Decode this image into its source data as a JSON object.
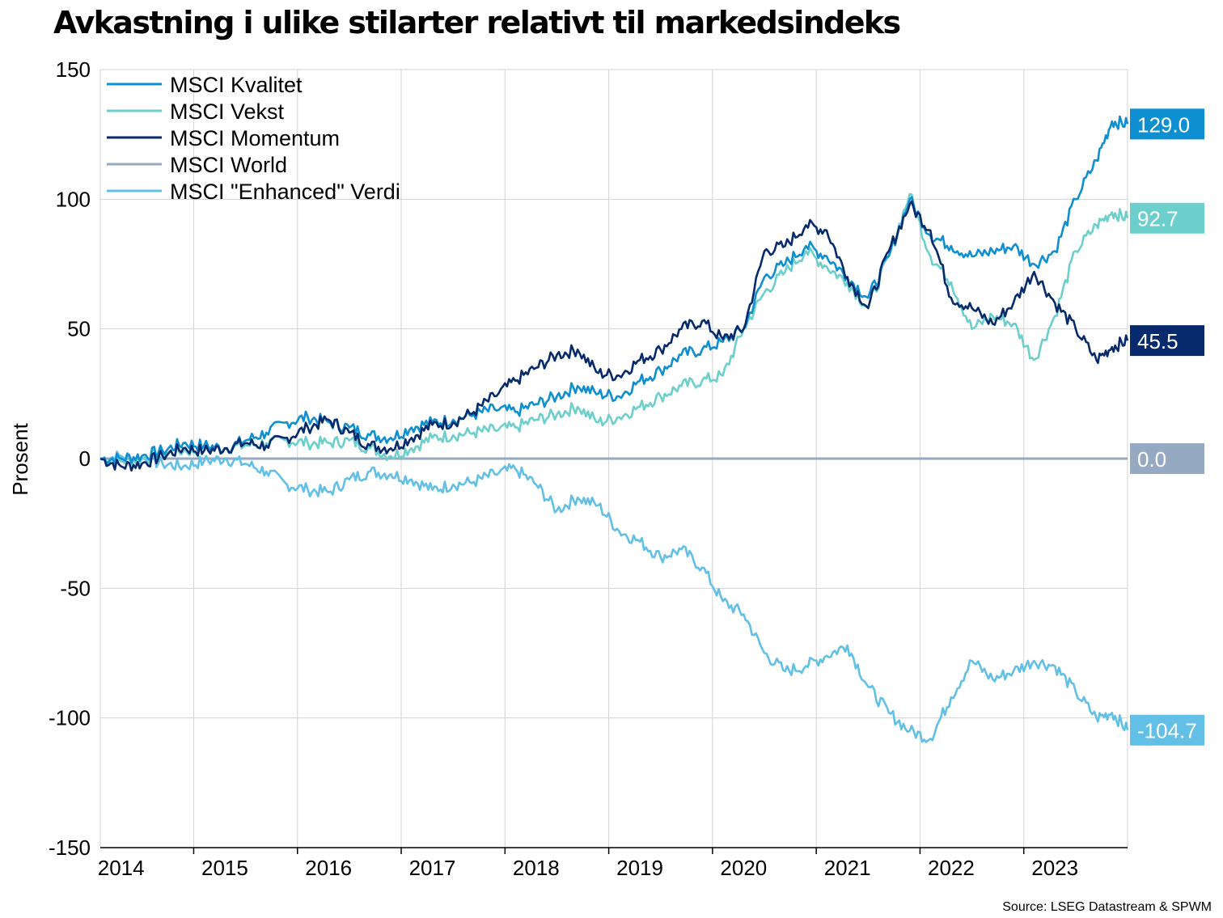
{
  "chart_data": {
    "type": "line",
    "title": "Avkastning i ulike stilarter relativt til markedsindeks",
    "ylabel": "Prosent",
    "xlabel": "",
    "source": "Source: LSEG Datastream & SPWM",
    "ylim": [
      -150,
      150
    ],
    "yticks": [
      150,
      100,
      50,
      0,
      -50,
      -100,
      -150
    ],
    "ytick_labels": [
      "150",
      "100",
      "50",
      "0",
      "-50",
      "-100",
      "-150"
    ],
    "xlim": [
      2013.8,
      2023.7
    ],
    "x_tick_labels": [
      {
        "label": "2014",
        "x": 2014.0
      },
      {
        "label": "2015",
        "x": 2015.0
      },
      {
        "label": "2016",
        "x": 2016.0
      },
      {
        "label": "2017",
        "x": 2017.0
      },
      {
        "label": "2018",
        "x": 2018.0
      },
      {
        "label": "2019",
        "x": 2019.0
      },
      {
        "label": "2020",
        "x": 2020.0
      },
      {
        "label": "2021",
        "x": 2021.0
      },
      {
        "label": "2022",
        "x": 2022.0
      },
      {
        "label": "2023",
        "x": 2023.0
      }
    ],
    "x_gridlines": [
      2014.7,
      2015.7,
      2016.7,
      2017.7,
      2018.7,
      2019.7,
      2020.7,
      2021.7,
      2022.7
    ],
    "grid": true,
    "legend_position": "top-left",
    "series": [
      {
        "name": "MSCI Kvalitet",
        "color": "#0d8fd1",
        "end_label": "129.0",
        "x": [
          2013.8,
          2014.0,
          2014.2,
          2014.4,
          2014.6,
          2014.8,
          2015.0,
          2015.2,
          2015.4,
          2015.6,
          2015.8,
          2016.0,
          2016.2,
          2016.4,
          2016.6,
          2016.8,
          2017.0,
          2017.2,
          2017.4,
          2017.6,
          2017.8,
          2018.0,
          2018.2,
          2018.4,
          2018.6,
          2018.8,
          2019.0,
          2019.2,
          2019.4,
          2019.6,
          2019.8,
          2020.0,
          2020.2,
          2020.4,
          2020.6,
          2020.8,
          2021.0,
          2021.2,
          2021.4,
          2021.6,
          2021.8,
          2022.0,
          2022.2,
          2022.4,
          2022.6,
          2022.8,
          2023.0,
          2023.2,
          2023.4,
          2023.55,
          2023.7
        ],
        "y": [
          0,
          0,
          1,
          3,
          6,
          5,
          4,
          7,
          10,
          14,
          16,
          14,
          12,
          9,
          8,
          12,
          14,
          15,
          17,
          19,
          18,
          21,
          24,
          28,
          25,
          24,
          30,
          34,
          40,
          42,
          45,
          50,
          70,
          75,
          82,
          78,
          70,
          62,
          78,
          100,
          86,
          82,
          78,
          80,
          82,
          75,
          80,
          100,
          115,
          130,
          129
        ]
      },
      {
        "name": "MSCI Vekst",
        "color": "#6ccfcc",
        "end_label": "92.7",
        "x": [
          2013.8,
          2014.0,
          2014.2,
          2014.4,
          2014.6,
          2014.8,
          2015.0,
          2015.2,
          2015.4,
          2015.6,
          2015.8,
          2016.0,
          2016.2,
          2016.4,
          2016.6,
          2016.8,
          2017.0,
          2017.2,
          2017.4,
          2017.6,
          2017.8,
          2018.0,
          2018.2,
          2018.4,
          2018.6,
          2018.8,
          2019.0,
          2019.2,
          2019.4,
          2019.6,
          2019.8,
          2020.0,
          2020.2,
          2020.4,
          2020.6,
          2020.8,
          2021.0,
          2021.2,
          2021.4,
          2021.6,
          2021.8,
          2022.0,
          2022.2,
          2022.4,
          2022.6,
          2022.8,
          2023.0,
          2023.2,
          2023.4,
          2023.55,
          2023.7
        ],
        "y": [
          0,
          -1,
          0,
          2,
          3,
          3,
          4,
          5,
          6,
          7,
          6,
          6,
          7,
          4,
          1,
          4,
          8,
          9,
          10,
          11,
          12,
          15,
          17,
          20,
          14,
          16,
          20,
          24,
          28,
          30,
          32,
          50,
          64,
          72,
          80,
          74,
          68,
          58,
          78,
          102,
          78,
          68,
          50,
          55,
          52,
          38,
          55,
          80,
          90,
          95,
          92.7
        ]
      },
      {
        "name": "MSCI Momentum",
        "color": "#062a6b",
        "end_label": "45.5",
        "x": [
          2013.8,
          2014.0,
          2014.2,
          2014.4,
          2014.6,
          2014.8,
          2015.0,
          2015.2,
          2015.4,
          2015.6,
          2015.8,
          2016.0,
          2016.2,
          2016.4,
          2016.6,
          2016.8,
          2017.0,
          2017.2,
          2017.4,
          2017.6,
          2017.8,
          2018.0,
          2018.2,
          2018.4,
          2018.6,
          2018.8,
          2019.0,
          2019.2,
          2019.4,
          2019.6,
          2019.8,
          2020.0,
          2020.2,
          2020.4,
          2020.6,
          2020.8,
          2021.0,
          2021.2,
          2021.4,
          2021.6,
          2021.8,
          2022.0,
          2022.2,
          2022.4,
          2022.6,
          2022.8,
          2023.0,
          2023.2,
          2023.4,
          2023.55,
          2023.7
        ],
        "y": [
          0,
          -3,
          -2,
          1,
          4,
          3,
          4,
          6,
          5,
          8,
          12,
          15,
          10,
          5,
          4,
          8,
          13,
          14,
          18,
          24,
          30,
          35,
          40,
          42,
          33,
          32,
          38,
          42,
          50,
          53,
          46,
          50,
          80,
          82,
          90,
          88,
          70,
          58,
          80,
          98,
          88,
          62,
          58,
          52,
          60,
          72,
          60,
          50,
          38,
          43,
          45.5
        ]
      },
      {
        "name": "MSCI World",
        "color": "#95a9c3",
        "end_label": "0.0",
        "x": [
          2013.8,
          2023.7
        ],
        "y": [
          0,
          0
        ]
      },
      {
        "name": "MSCI \"Enhanced\" Verdi",
        "color": "#62bfe5",
        "end_label": "-104.7",
        "x": [
          2013.8,
          2014.0,
          2014.2,
          2014.4,
          2014.6,
          2014.8,
          2015.0,
          2015.2,
          2015.4,
          2015.6,
          2015.8,
          2016.0,
          2016.2,
          2016.4,
          2016.6,
          2016.8,
          2017.0,
          2017.2,
          2017.4,
          2017.6,
          2017.8,
          2018.0,
          2018.2,
          2018.4,
          2018.6,
          2018.8,
          2019.0,
          2019.2,
          2019.4,
          2019.6,
          2019.8,
          2020.0,
          2020.2,
          2020.4,
          2020.6,
          2020.8,
          2021.0,
          2021.2,
          2021.4,
          2021.6,
          2021.8,
          2022.0,
          2022.2,
          2022.4,
          2022.6,
          2022.8,
          2023.0,
          2023.2,
          2023.4,
          2023.55,
          2023.7
        ],
        "y": [
          0,
          1,
          0,
          -2,
          -3,
          -1,
          0,
          -2,
          -5,
          -10,
          -12,
          -13,
          -8,
          -5,
          -6,
          -8,
          -12,
          -10,
          -9,
          -6,
          -4,
          -10,
          -20,
          -15,
          -18,
          -28,
          -32,
          -38,
          -35,
          -42,
          -55,
          -60,
          -75,
          -82,
          -80,
          -76,
          -72,
          -88,
          -98,
          -105,
          -108,
          -92,
          -78,
          -85,
          -82,
          -78,
          -80,
          -90,
          -100,
          -98,
          -104.7
        ]
      }
    ]
  }
}
